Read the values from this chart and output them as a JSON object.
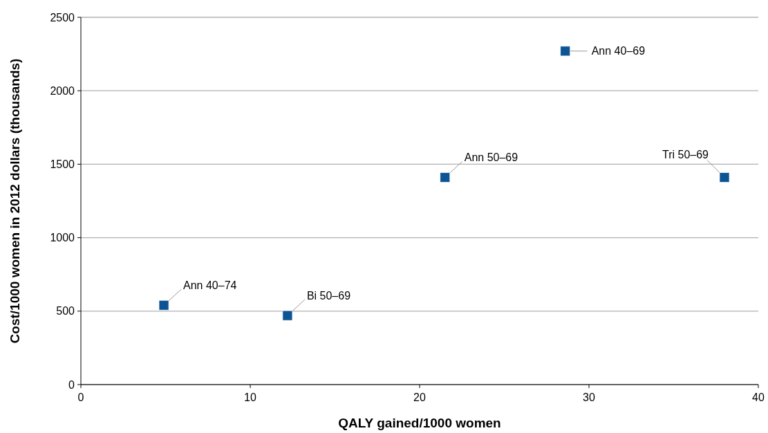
{
  "chart_data": {
    "type": "scatter",
    "xlabel": "QALY gained/1000 women",
    "ylabel": "Cost/1000 women in 2012 dollars (thousands)",
    "x": [
      4.9,
      12.2,
      21.5,
      28.6,
      38.0
    ],
    "series": [
      {
        "color": "#0d5494",
        "values": [
          540,
          470,
          1410,
          2270,
          1410
        ]
      }
    ],
    "xlim": [
      0,
      40
    ],
    "xticks": [
      0,
      10,
      20,
      30,
      40
    ],
    "ylim": [
      0,
      2500
    ],
    "yticks": [
      0,
      500,
      1000,
      1500,
      2000,
      2500
    ],
    "grid": "y",
    "marker": "square",
    "annotations": [
      {
        "text": "Ann 40–74",
        "x": 4.9,
        "y": 540
      },
      {
        "text": "Bi 50–69",
        "x": 12.2,
        "y": 470
      },
      {
        "text": "Ann 50–69",
        "x": 21.5,
        "y": 1410
      },
      {
        "text": "Ann 40–69",
        "x": 28.6,
        "y": 2270
      },
      {
        "text": "Tri 50–69",
        "x": 38.0,
        "y": 1410
      }
    ]
  }
}
